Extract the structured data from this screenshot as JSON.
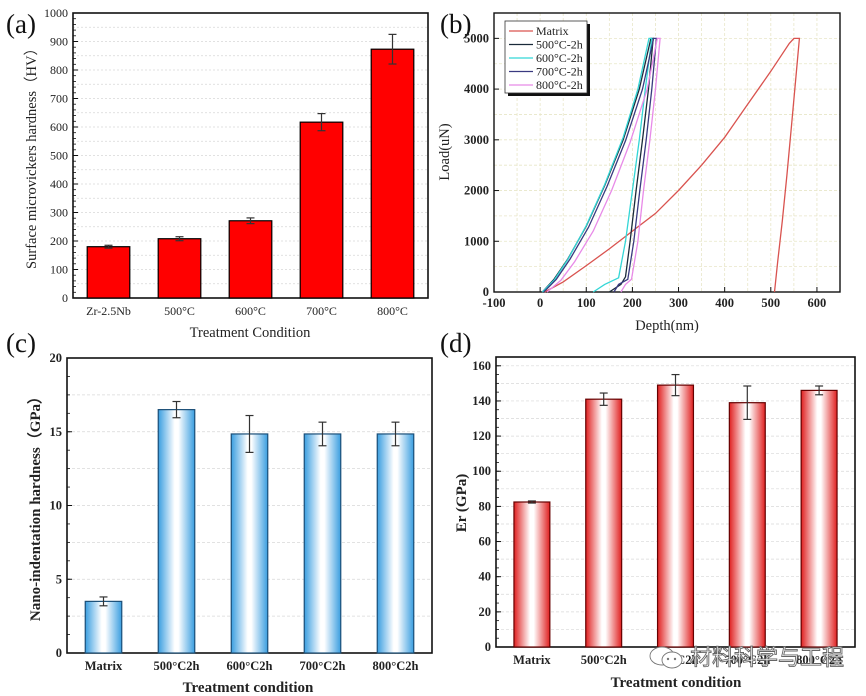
{
  "chart_data": [
    {
      "id": "a",
      "panel_label": "(a)",
      "type": "bar",
      "categories": [
        "Zr-2.5Nb",
        "500°C",
        "600°C",
        "700°C",
        "800°C"
      ],
      "values": [
        180,
        208,
        271,
        617,
        873
      ],
      "errors": [
        5,
        7,
        10,
        30,
        52
      ],
      "xlabel": "Treatment Condition",
      "ylabel": "Surface microvickers hardness（HV）",
      "ylim": [
        0,
        1000
      ],
      "yticks": [
        0,
        100,
        200,
        300,
        400,
        500,
        600,
        700,
        800,
        900,
        1000
      ],
      "grid": true,
      "bar_color": "#ff0000"
    },
    {
      "id": "b",
      "panel_label": "(b)",
      "type": "line",
      "xlabel": "Depth(nm)",
      "ylabel": "Load(uN)",
      "xlim": [
        -100,
        650
      ],
      "ylim": [
        0,
        5500
      ],
      "xticks": [
        -100,
        0,
        100,
        200,
        300,
        400,
        500,
        600
      ],
      "yticks": [
        0,
        1000,
        2000,
        3000,
        4000,
        5000
      ],
      "grid": true,
      "legend_position": "top-left",
      "series": [
        {
          "name": "Matrix",
          "color": "#d9534f",
          "points": [
            [
              10,
              0
            ],
            [
              50,
              200
            ],
            [
              100,
              520
            ],
            [
              150,
              850
            ],
            [
              200,
              1200
            ],
            [
              250,
              1550
            ],
            [
              300,
              2000
            ],
            [
              350,
              2500
            ],
            [
              400,
              3050
            ],
            [
              450,
              3700
            ],
            [
              500,
              4350
            ],
            [
              540,
              4900
            ],
            [
              550,
              5000
            ],
            [
              562,
              5000
            ],
            [
              555,
              4300
            ],
            [
              545,
              3300
            ],
            [
              535,
              2300
            ],
            [
              525,
              1400
            ],
            [
              515,
              600
            ],
            [
              508,
              0
            ]
          ]
        },
        {
          "name": "500°C-2h",
          "color": "#1a2a3a",
          "points": [
            [
              5,
              0
            ],
            [
              30,
              250
            ],
            [
              60,
              650
            ],
            [
              100,
              1300
            ],
            [
              140,
              2100
            ],
            [
              180,
              3000
            ],
            [
              215,
              4000
            ],
            [
              240,
              5000
            ],
            [
              245,
              5000
            ],
            [
              235,
              4000
            ],
            [
              222,
              3000
            ],
            [
              208,
              2000
            ],
            [
              195,
              1000
            ],
            [
              185,
              300
            ],
            [
              175,
              150
            ],
            [
              150,
              0
            ]
          ]
        },
        {
          "name": "600°C-2h",
          "color": "#33d6d6",
          "points": [
            [
              5,
              0
            ],
            [
              30,
              230
            ],
            [
              60,
              640
            ],
            [
              100,
              1310
            ],
            [
              140,
              2120
            ],
            [
              180,
              3050
            ],
            [
              212,
              4000
            ],
            [
              236,
              5000
            ],
            [
              242,
              5000
            ],
            [
              228,
              4000
            ],
            [
              215,
              3000
            ],
            [
              200,
              2000
            ],
            [
              185,
              1000
            ],
            [
              170,
              280
            ],
            [
              140,
              150
            ],
            [
              115,
              0
            ]
          ]
        },
        {
          "name": "700°C-2h",
          "color": "#3a3a80",
          "points": [
            [
              8,
              0
            ],
            [
              35,
              250
            ],
            [
              65,
              650
            ],
            [
              105,
              1280
            ],
            [
              145,
              2080
            ],
            [
              185,
              2980
            ],
            [
              222,
              4000
            ],
            [
              246,
              5000
            ],
            [
              252,
              5000
            ],
            [
              242,
              4000
            ],
            [
              230,
              3000
            ],
            [
              216,
              2000
            ],
            [
              203,
              1000
            ],
            [
              190,
              250
            ],
            [
              170,
              150
            ],
            [
              160,
              0
            ]
          ]
        },
        {
          "name": "800°C-2h",
          "color": "#e88ae8",
          "points": [
            [
              15,
              0
            ],
            [
              45,
              230
            ],
            [
              75,
              600
            ],
            [
              115,
              1200
            ],
            [
              155,
              2000
            ],
            [
              195,
              2950
            ],
            [
              232,
              4000
            ],
            [
              254,
              5000
            ],
            [
              260,
              5000
            ],
            [
              250,
              4000
            ],
            [
              238,
              3000
            ],
            [
              224,
              2000
            ],
            [
              212,
              1000
            ],
            [
              198,
              250
            ],
            [
              185,
              150
            ],
            [
              175,
              0
            ]
          ]
        }
      ]
    },
    {
      "id": "c",
      "panel_label": "(c)",
      "type": "bar",
      "categories": [
        "Matrix",
        "500°C2h",
        "600°C2h",
        "700°C2h",
        "800°C2h"
      ],
      "values": [
        3.5,
        16.5,
        14.85,
        14.85,
        14.85
      ],
      "errors": [
        0.3,
        0.55,
        1.25,
        0.8,
        0.8
      ],
      "xlabel": "Treatment condition",
      "ylabel": "Nano-indentation hardness（GPa）",
      "ylim": [
        0,
        20
      ],
      "yticks": [
        0,
        5,
        10,
        15,
        20
      ],
      "grid": true,
      "bar_color": "#4fb0e8"
    },
    {
      "id": "d",
      "panel_label": "(d)",
      "type": "bar",
      "categories": [
        "Matrix",
        "500°C2h",
        "600°C2h",
        "700°C2h",
        "800°C2h"
      ],
      "values": [
        82.5,
        141,
        149,
        139,
        146
      ],
      "errors": [
        0.6,
        3.5,
        6,
        9.5,
        2.5
      ],
      "xlabel": "Treatment condition",
      "ylabel": "Er (GPa)",
      "ylim": [
        0,
        165
      ],
      "yticks": [
        0,
        20,
        40,
        60,
        80,
        100,
        120,
        140,
        160
      ],
      "grid": true,
      "bar_color": "#e83030"
    }
  ],
  "watermark": {
    "text": "材料科学与工程",
    "icon": "wechat-icon"
  }
}
